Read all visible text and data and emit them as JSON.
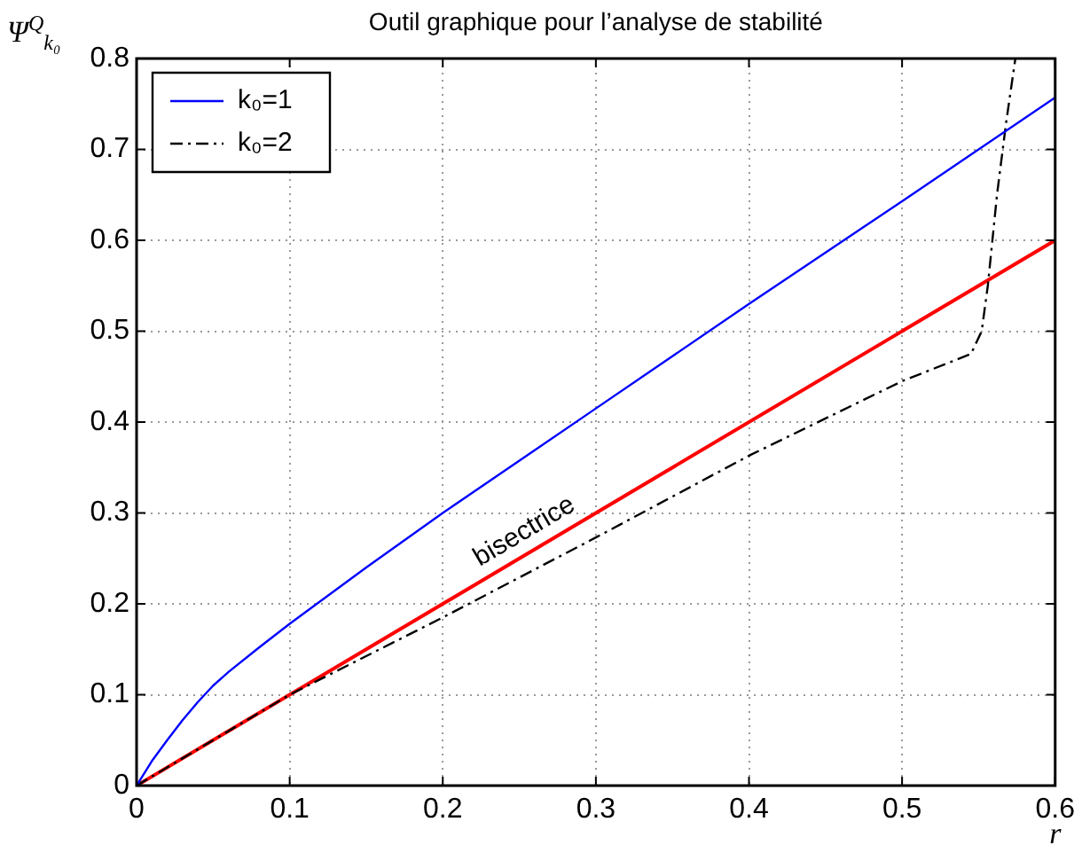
{
  "chart_data": {
    "type": "line",
    "title": "Outil graphique pour l’analyse de stabilité",
    "xlabel": "r",
    "ylabel": "Ψ$^{Q}$$_{k₀}$",
    "xlim": [
      0,
      0.6
    ],
    "ylim": [
      0,
      0.8
    ],
    "xticks": [
      0,
      0.1,
      0.2,
      0.3,
      0.4,
      0.5,
      0.6
    ],
    "yticks": [
      0,
      0.1,
      0.2,
      0.3,
      0.4,
      0.5,
      0.6,
      0.7,
      0.8
    ],
    "grid": true,
    "legend": "top left",
    "marker": "none",
    "series": [
      {
        "name": "k₀=1",
        "color": "#0000ff",
        "line_style": "solid",
        "x": [
          0,
          0.01,
          0.02,
          0.03,
          0.04,
          0.05,
          0.06,
          0.08,
          0.1,
          0.15,
          0.2,
          0.3,
          0.4,
          0.5,
          0.6
        ],
        "values": [
          0,
          0.027,
          0.05,
          0.072,
          0.092,
          0.11,
          0.125,
          0.152,
          0.178,
          0.24,
          0.3,
          0.415,
          0.53,
          0.643,
          0.757
        ]
      },
      {
        "name": "k₀=2",
        "color": "#000000",
        "line_style": "dashed",
        "x": [
          0,
          0.05,
          0.1,
          0.2,
          0.3,
          0.4,
          0.5,
          0.545,
          0.552,
          0.556,
          0.562,
          0.568,
          0.574
        ],
        "values": [
          0,
          0.05,
          0.1,
          0.185,
          0.273,
          0.363,
          0.445,
          0.475,
          0.5,
          0.55,
          0.65,
          0.73,
          0.8
        ]
      },
      {
        "color": "#ff0000",
        "line_style": "solid",
        "x": [
          0,
          0.6
        ],
        "values": [
          0,
          0.6
        ]
      }
    ],
    "annotations": [
      "bisectrice"
    ]
  }
}
